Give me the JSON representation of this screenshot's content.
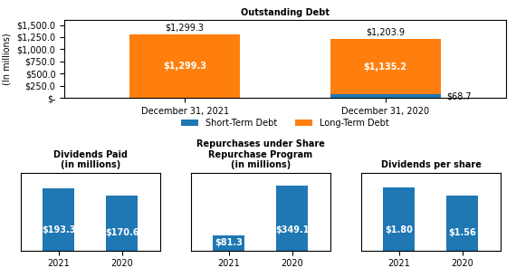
{
  "chart_data": [
    {
      "type": "bar",
      "stacked": true,
      "title": "Outstanding Debt",
      "y_label": "(In millions)",
      "categories": [
        "December 31, 2021",
        "December 31, 2020"
      ],
      "series": [
        {
          "name": "Short-Term Debt",
          "values": [
            0.0,
            68.7
          ],
          "value_labels": [
            null,
            "$68.7"
          ]
        },
        {
          "name": "Long-Term Debt",
          "values": [
            1299.3,
            1135.2
          ],
          "value_labels": [
            "$1,299.3",
            "$1,135.2"
          ]
        }
      ],
      "totals": [
        1299.3,
        1203.9
      ],
      "total_labels": [
        "$1,299.3",
        "$1,203.9"
      ],
      "ylim": [
        0,
        1600
      ],
      "yticks": [
        {
          "value": 0,
          "label": "$-"
        },
        {
          "value": 250,
          "label": "$250.0"
        },
        {
          "value": 500,
          "label": "$500.0"
        },
        {
          "value": 750,
          "label": "$750.0"
        },
        {
          "value": 1000,
          "label": "$1,000.0"
        },
        {
          "value": 1250,
          "label": "$1,250.0"
        },
        {
          "value": 1500,
          "label": "$1,500.0"
        }
      ],
      "legend": "upper center",
      "data_labels": true
    },
    {
      "type": "bar",
      "title": "Dividends Paid\n(in millions)",
      "categories": [
        "2021",
        "2020"
      ],
      "values": [
        193.3,
        170.6
      ],
      "value_labels": [
        "$193.3",
        "$170.6"
      ],
      "ylim": [
        0,
        240
      ],
      "tick_labels": "x",
      "data_labels": true
    },
    {
      "type": "bar",
      "title": "Repurchases under Share\nRepurchase Program\n(in millions)",
      "categories": [
        "2021",
        "2020"
      ],
      "values": [
        81.3,
        349.1
      ],
      "value_labels": [
        "$81.3",
        "$349.1"
      ],
      "ylim": [
        0,
        420
      ],
      "tick_labels": "x",
      "data_labels": true
    },
    {
      "type": "bar",
      "title": "Dividends per share",
      "categories": [
        "2021",
        "2020"
      ],
      "values": [
        1.8,
        1.56
      ],
      "value_labels": [
        "$1.80",
        "$1.56"
      ],
      "ylim": [
        0,
        2.2
      ],
      "tick_labels": "x",
      "data_labels": true
    }
  ]
}
